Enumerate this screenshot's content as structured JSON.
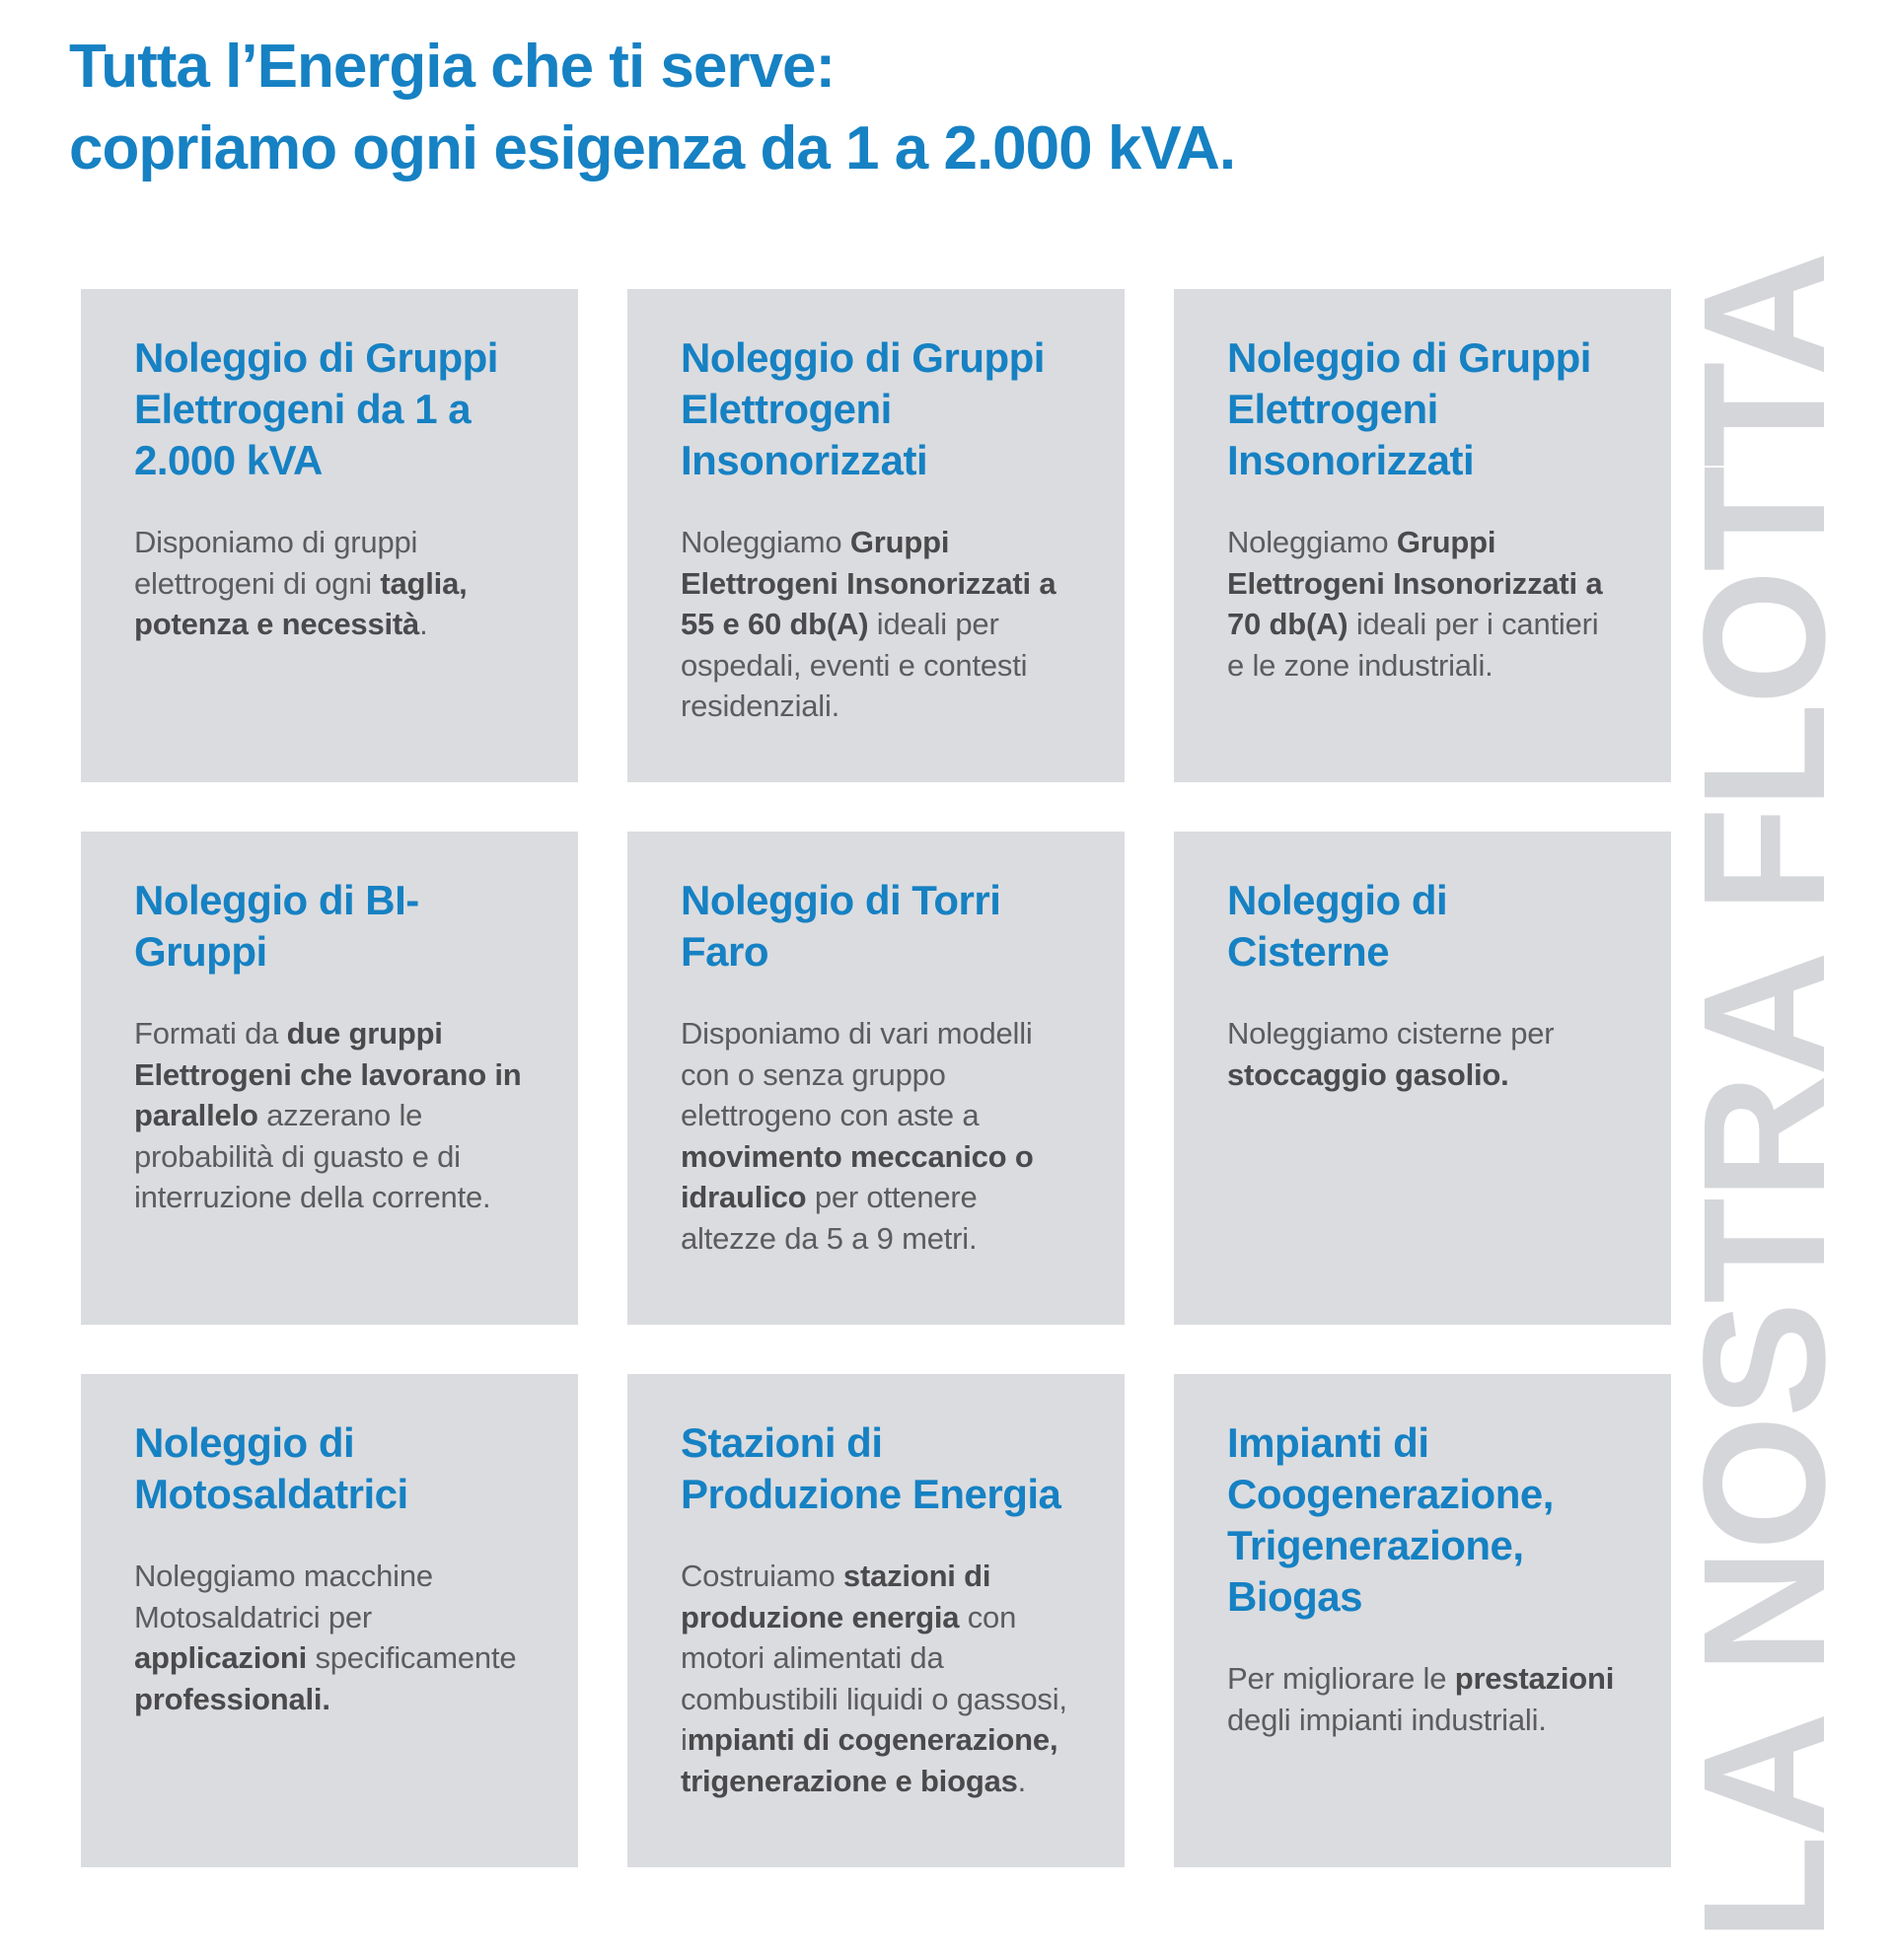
{
  "heading": {
    "line1": "Tutta l’Energia che ti serve:",
    "line2": "copriamo ogni esigenza da 1 a 2.000 kVA."
  },
  "watermark": {
    "text": "LA NOSTRA FLOTTA"
  },
  "colors": {
    "accent_blue": "#1681c3",
    "card_background": "#dbdcdf",
    "body_text": "#5c5c5e",
    "body_text_bold": "#4a4a4c",
    "watermark_gray": "#d5d6d9",
    "page_background": "#ffffff"
  },
  "cards": [
    {
      "title": "Noleggio di Gruppi Elettrogeni da 1 a 2.000 kVA",
      "body": [
        {
          "text": "Disponiamo di gruppi elettrogeni di ogni ",
          "bold": false
        },
        {
          "text": "taglia, potenza e necessità",
          "bold": true
        },
        {
          "text": ".",
          "bold": false
        }
      ]
    },
    {
      "title": "Noleggio di Gruppi Elettrogeni Insonorizzati",
      "body": [
        {
          "text": "Noleggiamo ",
          "bold": false
        },
        {
          "text": "Gruppi Elettrogeni Insonorizzati a 55 e 60 db(A)",
          "bold": true
        },
        {
          "text": " ideali per ospedali, eventi e contesti residenziali.",
          "bold": false
        }
      ]
    },
    {
      "title": "Noleggio di Gruppi Elettrogeni Insonorizzati",
      "body": [
        {
          "text": "Noleggiamo ",
          "bold": false
        },
        {
          "text": "Gruppi Elettrogeni Insonorizzati a 70 db(A)",
          "bold": true
        },
        {
          "text": " ideali per i cantieri e le zone industriali.",
          "bold": false
        }
      ]
    },
    {
      "title": "Noleggio di BI-Gruppi",
      "body": [
        {
          "text": "Formati da ",
          "bold": false
        },
        {
          "text": "due gruppi Elettrogeni che lavorano in parallelo",
          "bold": true
        },
        {
          "text": " azzerano le probabilità di guasto e di interruzione della corrente.",
          "bold": false
        }
      ]
    },
    {
      "title": "Noleggio di Torri Faro",
      "body": [
        {
          "text": "Disponiamo di vari modelli con o senza gruppo elettrogeno con aste a ",
          "bold": false
        },
        {
          "text": "movimento meccanico o idraulico",
          "bold": true
        },
        {
          "text": " per ottenere altezze da 5 a 9 metri.",
          "bold": false
        }
      ]
    },
    {
      "title": "Noleggio di Cisterne",
      "body": [
        {
          "text": "Noleggiamo cisterne per ",
          "bold": false
        },
        {
          "text": "stoccaggio gasolio.",
          "bold": true
        }
      ]
    },
    {
      "title": "Noleggio di Motosaldatrici",
      "body": [
        {
          "text": "Noleggiamo macchine Motosaldatrici per ",
          "bold": false
        },
        {
          "text": "applicazioni",
          "bold": true
        },
        {
          "text": " specificamente ",
          "bold": false
        },
        {
          "text": "professionali.",
          "bold": true
        }
      ]
    },
    {
      "title": "Stazioni di Produzione Energia",
      "body": [
        {
          "text": "Costruiamo ",
          "bold": false
        },
        {
          "text": "stazioni di produzione energia",
          "bold": true
        },
        {
          "text": " con motori alimentati da combustibili liquidi o gassosi, i",
          "bold": false
        },
        {
          "text": "mpianti di cogenerazione, trigenerazione e biogas",
          "bold": true
        },
        {
          "text": ".",
          "bold": false
        }
      ]
    },
    {
      "title": "Impianti di Coogenerazione, Trigenerazione, Biogas",
      "body": [
        {
          "text": "Per migliorare le ",
          "bold": false
        },
        {
          "text": "prestazioni",
          "bold": true
        },
        {
          "text": " degli impianti industriali.",
          "bold": false
        }
      ]
    }
  ]
}
